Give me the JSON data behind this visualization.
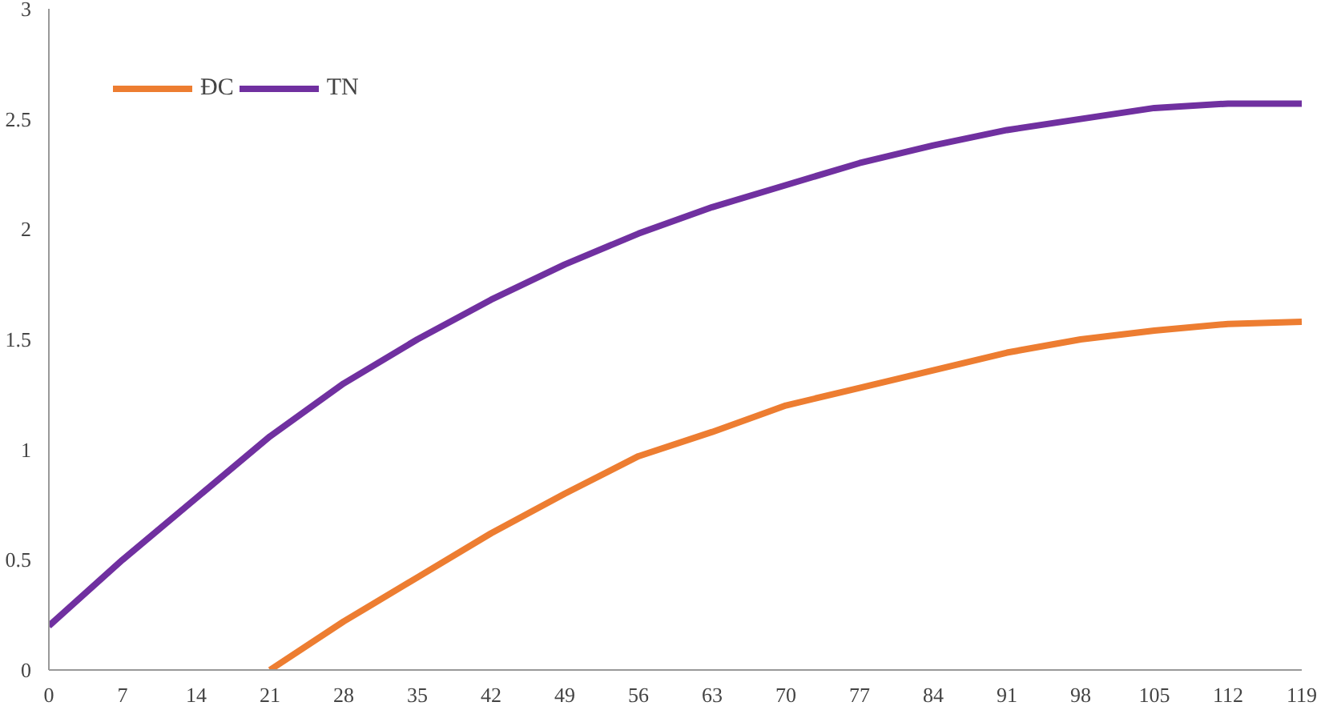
{
  "chart_data": {
    "type": "line",
    "x": [
      0,
      7,
      14,
      21,
      28,
      35,
      42,
      49,
      56,
      63,
      70,
      77,
      84,
      91,
      98,
      105,
      112,
      119
    ],
    "series": [
      {
        "name": "ĐC",
        "color": "#ed7d31",
        "x": [
          21,
          28,
          35,
          42,
          49,
          56,
          63,
          70,
          77,
          84,
          91,
          98,
          105,
          112,
          119
        ],
        "values": [
          0,
          0.22,
          0.42,
          0.62,
          0.8,
          0.97,
          1.08,
          1.2,
          1.28,
          1.36,
          1.44,
          1.5,
          1.54,
          1.57,
          1.58
        ]
      },
      {
        "name": "TN",
        "color": "#7030a0",
        "values": [
          0.2,
          0.5,
          0.78,
          1.06,
          1.3,
          1.5,
          1.68,
          1.84,
          1.98,
          2.1,
          2.2,
          2.3,
          2.38,
          2.45,
          2.5,
          2.55,
          2.57,
          2.57
        ]
      }
    ],
    "xlim": [
      0,
      119
    ],
    "xticks": [
      0,
      7,
      14,
      21,
      28,
      35,
      42,
      49,
      56,
      63,
      70,
      77,
      84,
      91,
      98,
      105,
      112,
      119
    ],
    "ylim": [
      0,
      3
    ],
    "yticks": [
      0,
      0.5,
      1,
      1.5,
      2,
      2.5,
      3
    ],
    "grid": false,
    "legend": "top left",
    "line_style": "solid",
    "marker": "none"
  }
}
